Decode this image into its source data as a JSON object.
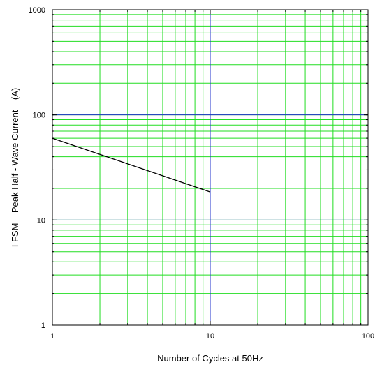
{
  "chart_data": {
    "type": "line",
    "xlabel": "Number of Cycles at 50Hz",
    "ylabel": "I FSM    Peak Half - Wave Current    (A)",
    "xscale": "log",
    "yscale": "log",
    "xlim": [
      1,
      100
    ],
    "ylim": [
      1,
      1000
    ],
    "grid": true,
    "x_ticks": [
      1,
      10,
      100
    ],
    "x_tick_labels": [
      "1",
      "10",
      "100"
    ],
    "y_ticks": [
      1,
      10,
      100,
      1000
    ],
    "y_tick_labels": [
      "1",
      "10",
      "100",
      "1000"
    ],
    "series": [
      {
        "x": [
          1,
          10
        ],
        "y": [
          60,
          18.5
        ]
      }
    ],
    "colors": {
      "minor_grid": "#22dd22",
      "major_grid": "#2233cc",
      "series": "#000000",
      "frame": "#000000"
    }
  }
}
